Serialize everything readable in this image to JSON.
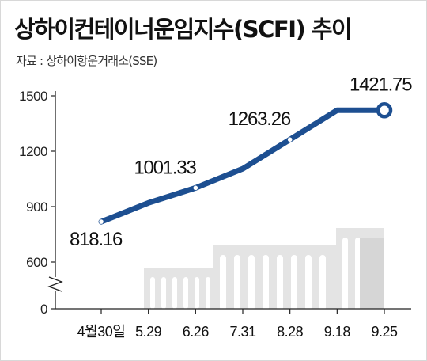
{
  "chart_data": {
    "type": "line",
    "title": "상하이컨테이너운임지수(SCFI) 추이",
    "source": "자료 : 상하이항운거래소(SSE)",
    "categories": [
      "4월30일",
      "5.29",
      "6.26",
      "7.31",
      "8.28",
      "9.18",
      "9.25"
    ],
    "series": [
      {
        "values": [
          818.16,
          920,
          1001.33,
          1105,
          1263.26,
          1421.75,
          1421.75
        ]
      }
    ],
    "data_labels": [
      {
        "index": 0,
        "text": "818.16"
      },
      {
        "index": 2,
        "text": "1001.33"
      },
      {
        "index": 4,
        "text": "1263.26"
      },
      {
        "index": 6,
        "text": "1421.75"
      }
    ],
    "yticks": [
      0,
      600,
      900,
      1200,
      1500
    ],
    "ylim": [
      0,
      1500
    ],
    "y_axis_break": true,
    "grid": false,
    "line_color": "#1d4f91",
    "marker_fill": "#ffffff",
    "area_color": "#e4e4e4",
    "decoration": "container-illustration"
  }
}
